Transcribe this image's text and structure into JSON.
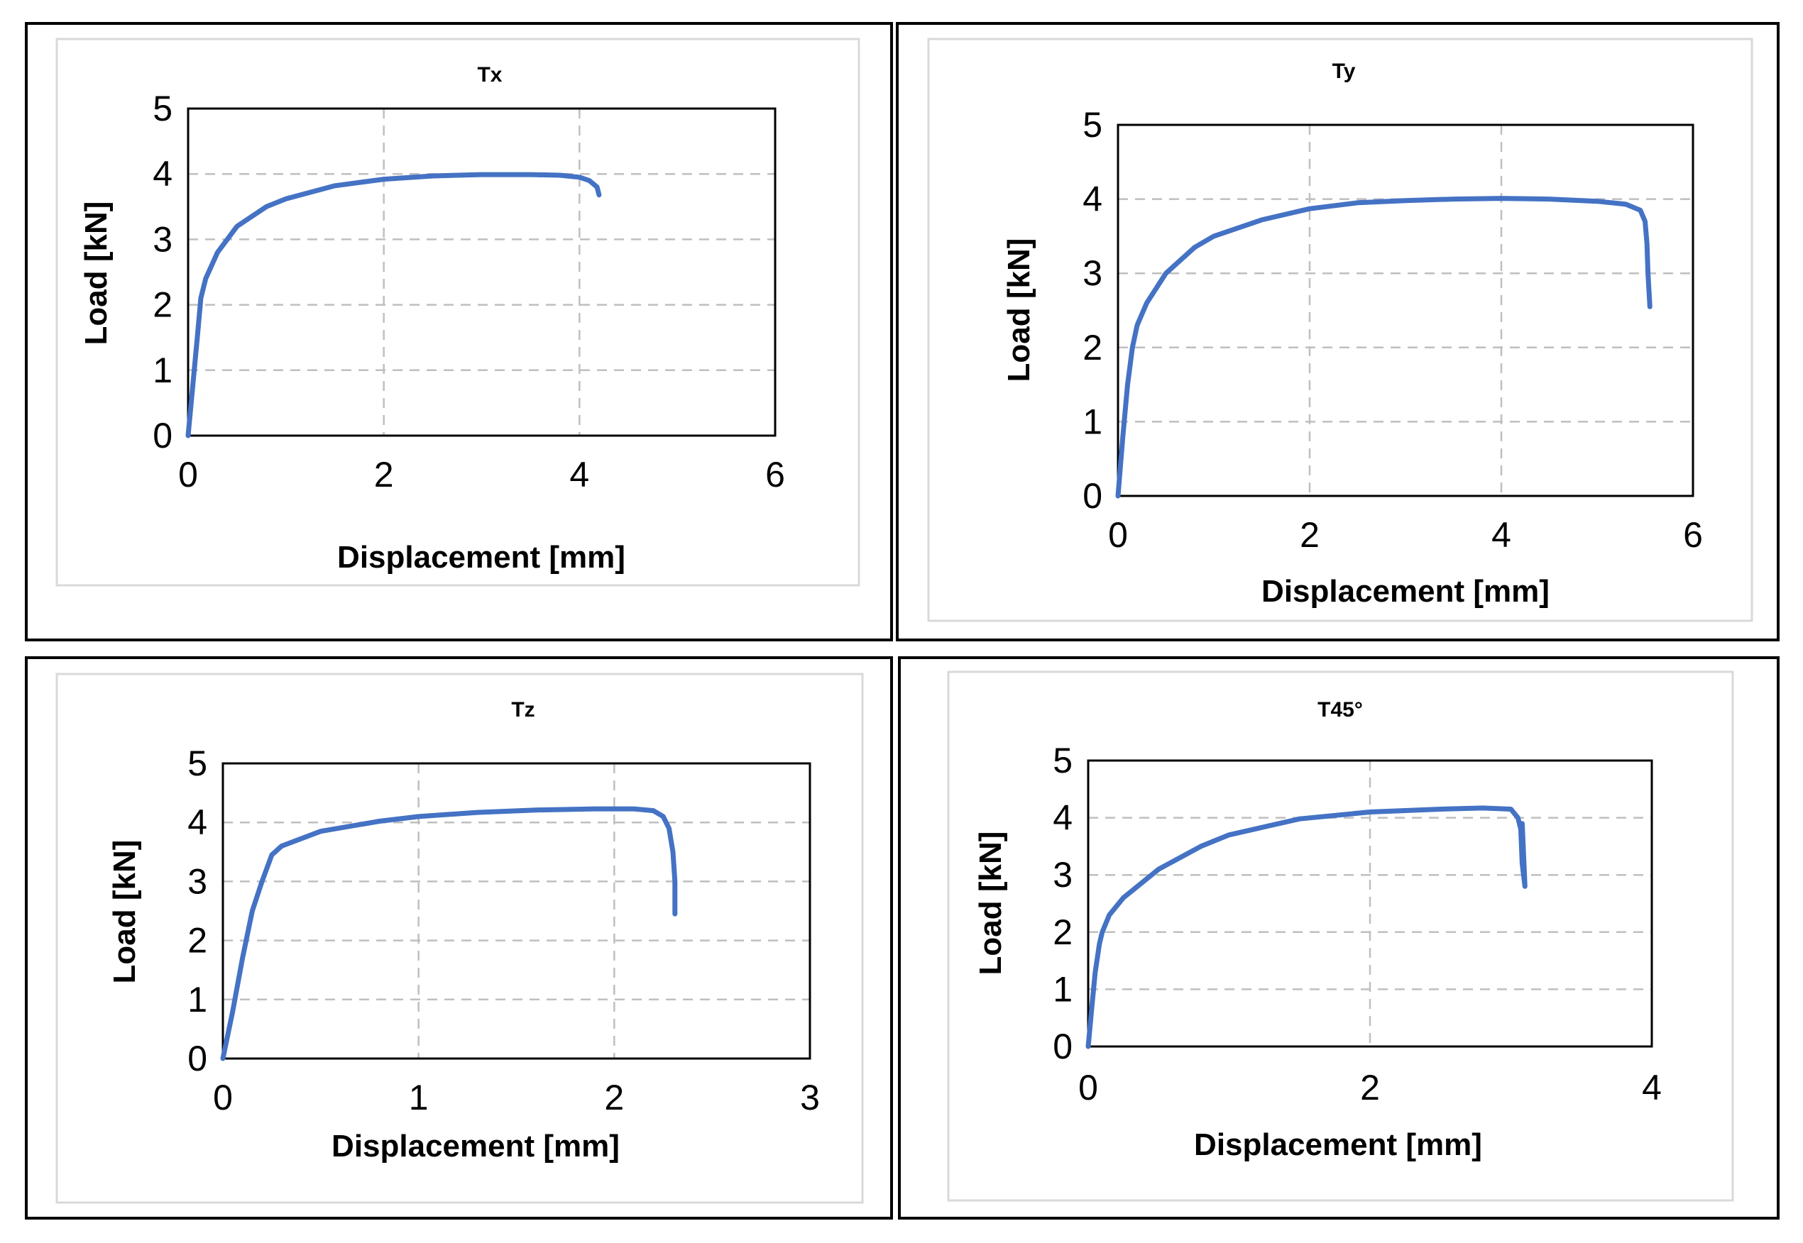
{
  "chart_data": [
    {
      "type": "line",
      "title": "Tx",
      "xlabel": "Displacement [mm]",
      "ylabel": "Load [kN]",
      "xlim": [
        0,
        6
      ],
      "ylim": [
        0,
        5
      ],
      "xticks": [
        0,
        2,
        4,
        6
      ],
      "yticks": [
        0,
        1,
        2,
        3,
        4,
        5
      ],
      "grid": true,
      "series": [
        {
          "name": "Tx",
          "color": "#4472c4",
          "x": [
            0,
            0.05,
            0.1,
            0.13,
            0.18,
            0.3,
            0.5,
            0.8,
            1.0,
            1.5,
            2.0,
            2.5,
            3.0,
            3.5,
            3.8,
            4.0,
            4.1,
            4.18,
            4.2
          ],
          "y": [
            0,
            0.8,
            1.6,
            2.1,
            2.4,
            2.8,
            3.2,
            3.5,
            3.62,
            3.82,
            3.92,
            3.97,
            3.99,
            3.99,
            3.98,
            3.95,
            3.9,
            3.8,
            3.68
          ]
        }
      ]
    },
    {
      "type": "line",
      "title": "Ty",
      "xlabel": "Displacement [mm]",
      "ylabel": "Load [kN]",
      "xlim": [
        0,
        6
      ],
      "ylim": [
        0,
        5
      ],
      "xticks": [
        0,
        2,
        4,
        6
      ],
      "yticks": [
        0,
        1,
        2,
        3,
        4,
        5
      ],
      "grid": true,
      "series": [
        {
          "name": "Ty",
          "color": "#4472c4",
          "x": [
            0,
            0.05,
            0.1,
            0.15,
            0.2,
            0.3,
            0.5,
            0.8,
            1.0,
            1.5,
            2.0,
            2.5,
            3.0,
            3.5,
            4.0,
            4.5,
            5.0,
            5.3,
            5.45,
            5.5,
            5.52,
            5.53,
            5.55
          ],
          "y": [
            0,
            0.8,
            1.5,
            2.0,
            2.3,
            2.6,
            3.0,
            3.35,
            3.5,
            3.72,
            3.87,
            3.95,
            3.98,
            4.0,
            4.01,
            4.0,
            3.97,
            3.93,
            3.85,
            3.7,
            3.4,
            3.0,
            2.55
          ]
        }
      ]
    },
    {
      "type": "line",
      "title": "Tz",
      "xlabel": "Displacement [mm]",
      "ylabel": "Load [kN]",
      "xlim": [
        0,
        3
      ],
      "ylim": [
        0,
        5
      ],
      "xticks": [
        0,
        1,
        2,
        3
      ],
      "yticks": [
        0,
        1,
        2,
        3,
        4,
        5
      ],
      "grid": true,
      "series": [
        {
          "name": "Tz",
          "color": "#4472c4",
          "x": [
            0,
            0.05,
            0.1,
            0.15,
            0.2,
            0.25,
            0.3,
            0.5,
            0.8,
            1.0,
            1.3,
            1.6,
            1.9,
            2.1,
            2.2,
            2.25,
            2.28,
            2.3,
            2.31,
            2.31
          ],
          "y": [
            0,
            0.8,
            1.7,
            2.5,
            3.0,
            3.45,
            3.6,
            3.85,
            4.02,
            4.1,
            4.17,
            4.21,
            4.23,
            4.23,
            4.2,
            4.1,
            3.9,
            3.5,
            3.0,
            2.45
          ]
        }
      ]
    },
    {
      "type": "line",
      "title": "T45°",
      "xlabel": "Displacement [mm]",
      "ylabel": "Load [kN]",
      "xlim": [
        0,
        4
      ],
      "ylim": [
        0,
        5
      ],
      "xticks": [
        0,
        2,
        4
      ],
      "yticks": [
        0,
        1,
        2,
        3,
        4,
        5
      ],
      "grid": true,
      "series": [
        {
          "name": "T45°",
          "color": "#4472c4",
          "x": [
            0,
            0.03,
            0.05,
            0.08,
            0.1,
            0.15,
            0.25,
            0.5,
            0.8,
            1.0,
            1.5,
            2.0,
            2.5,
            2.8,
            3.0,
            3.05,
            3.07,
            3.08,
            3.1,
            3.08
          ],
          "y": [
            0,
            0.8,
            1.3,
            1.8,
            2.0,
            2.3,
            2.6,
            3.1,
            3.5,
            3.7,
            3.98,
            4.1,
            4.15,
            4.17,
            4.15,
            4.0,
            3.8,
            3.2,
            2.8,
            3.9
          ]
        }
      ]
    }
  ]
}
